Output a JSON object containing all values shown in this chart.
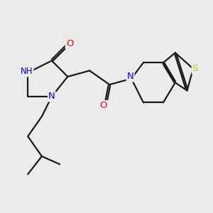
{
  "background_color": "#ebebeb",
  "atom_colors": {
    "C": "#000000",
    "N": "#0000ff",
    "O": "#ff0000",
    "S": "#cccc00",
    "H": "#0000ff"
  },
  "bond_color": "#1a1a1a",
  "bond_width": 1.6,
  "figsize": [
    3.0,
    3.0
  ],
  "dpi": 100
}
